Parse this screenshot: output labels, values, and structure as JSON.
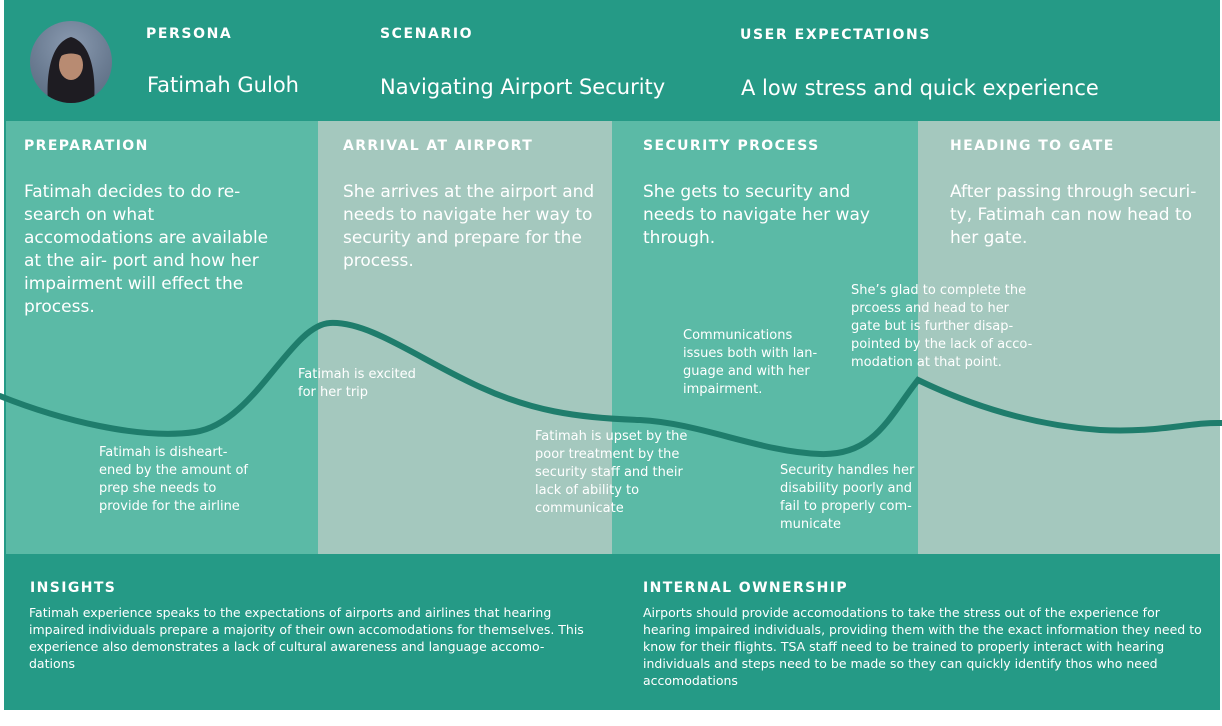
{
  "header": {
    "persona_label": "PERSONA",
    "persona_name": "Fatimah Guloh",
    "scenario_label": "SCENARIO",
    "scenario_value": "Navigating Airport Security",
    "expectations_label": "USER EXPECTATIONS",
    "expectations_value": "A low stress and quick experience"
  },
  "stages": [
    {
      "title": "PREPARATION",
      "description": "Fatimah decides to do re- search on what accomodations are available at the air- port and how her impairment will effect the process."
    },
    {
      "title": "ARRIVAL AT AIRPORT",
      "description": "She arrives at the airport and needs to navigate her way to security and prepare for the process."
    },
    {
      "title": "SECURITY PROCESS",
      "description": "She gets to security and needs to navigate her way through."
    },
    {
      "title": "HEADING TO GATE",
      "description": "After passing through securi- ty, Fatimah can now head to her gate."
    }
  ],
  "emotions": [
    "Fatimah is disheart- ened by the amount of prep she needs to provide for the airline",
    "Fatimah is excited for her trip",
    "Fatimah is upset by the poor treatment by the security staff and their lack of ability to communicate",
    "Communications issues both with lan- guage and with her impairment.",
    "Security handles her disability poorly and fail to properly com- municate",
    "She’s glad to complete the prcoess and head to her gate but is further disap- pointed by the lack of acco- modation at that point."
  ],
  "insights": {
    "title": "INSIGHTS",
    "body": "Fatimah experience speaks to the expectations of airports and airlines that hearing impaired individuals prepare a majority of their own accomodations for themselves. This experience also demonstrates a lack of cultural awareness and language accomo- dations"
  },
  "ownership": {
    "title": "INTERNAL OWNERSHIP",
    "body": "Airports should provide accomodations to take the stress out of the experience for hearing impaired individuals, providing them with the the exact information they need to know for their flights. TSA staff need to be trained to properly interact with hearing individuals and steps need to be made so they can quickly identify thos who need accomodations"
  },
  "colors": {
    "frame": "#259a86",
    "stage_light": "#5bbaa6",
    "stage_grey": "#a4c8be",
    "curve": "#1f7d6c"
  }
}
